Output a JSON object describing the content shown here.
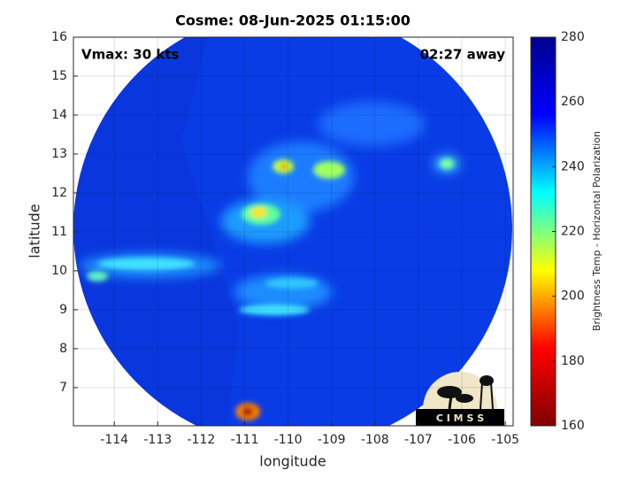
{
  "chart_data": {
    "type": "image",
    "title": "Cosme: 08-Jun-2025 01:15:00",
    "annotations": [
      "Vmax: 30 kts",
      "02:27 away"
    ],
    "xlabel": "longitude",
    "ylabel": "latitude",
    "xlim": [
      -114.94,
      -104.82
    ],
    "xticks": [
      -114,
      -113,
      -112,
      -111,
      -110,
      -109,
      -108,
      -107,
      -106,
      -105
    ],
    "ylim": [
      6.02,
      16
    ],
    "yticks": [
      7,
      8,
      9,
      10,
      11,
      12,
      13,
      14,
      15,
      16
    ],
    "grid": true,
    "colorbar": {
      "label": "Brightness Temp - Horizontal Polarization",
      "colormap": "jet",
      "lim": [
        160,
        280
      ],
      "ticks": [
        160,
        180,
        200,
        220,
        240,
        260,
        280
      ]
    }
  },
  "logo_text": "C I M S S"
}
